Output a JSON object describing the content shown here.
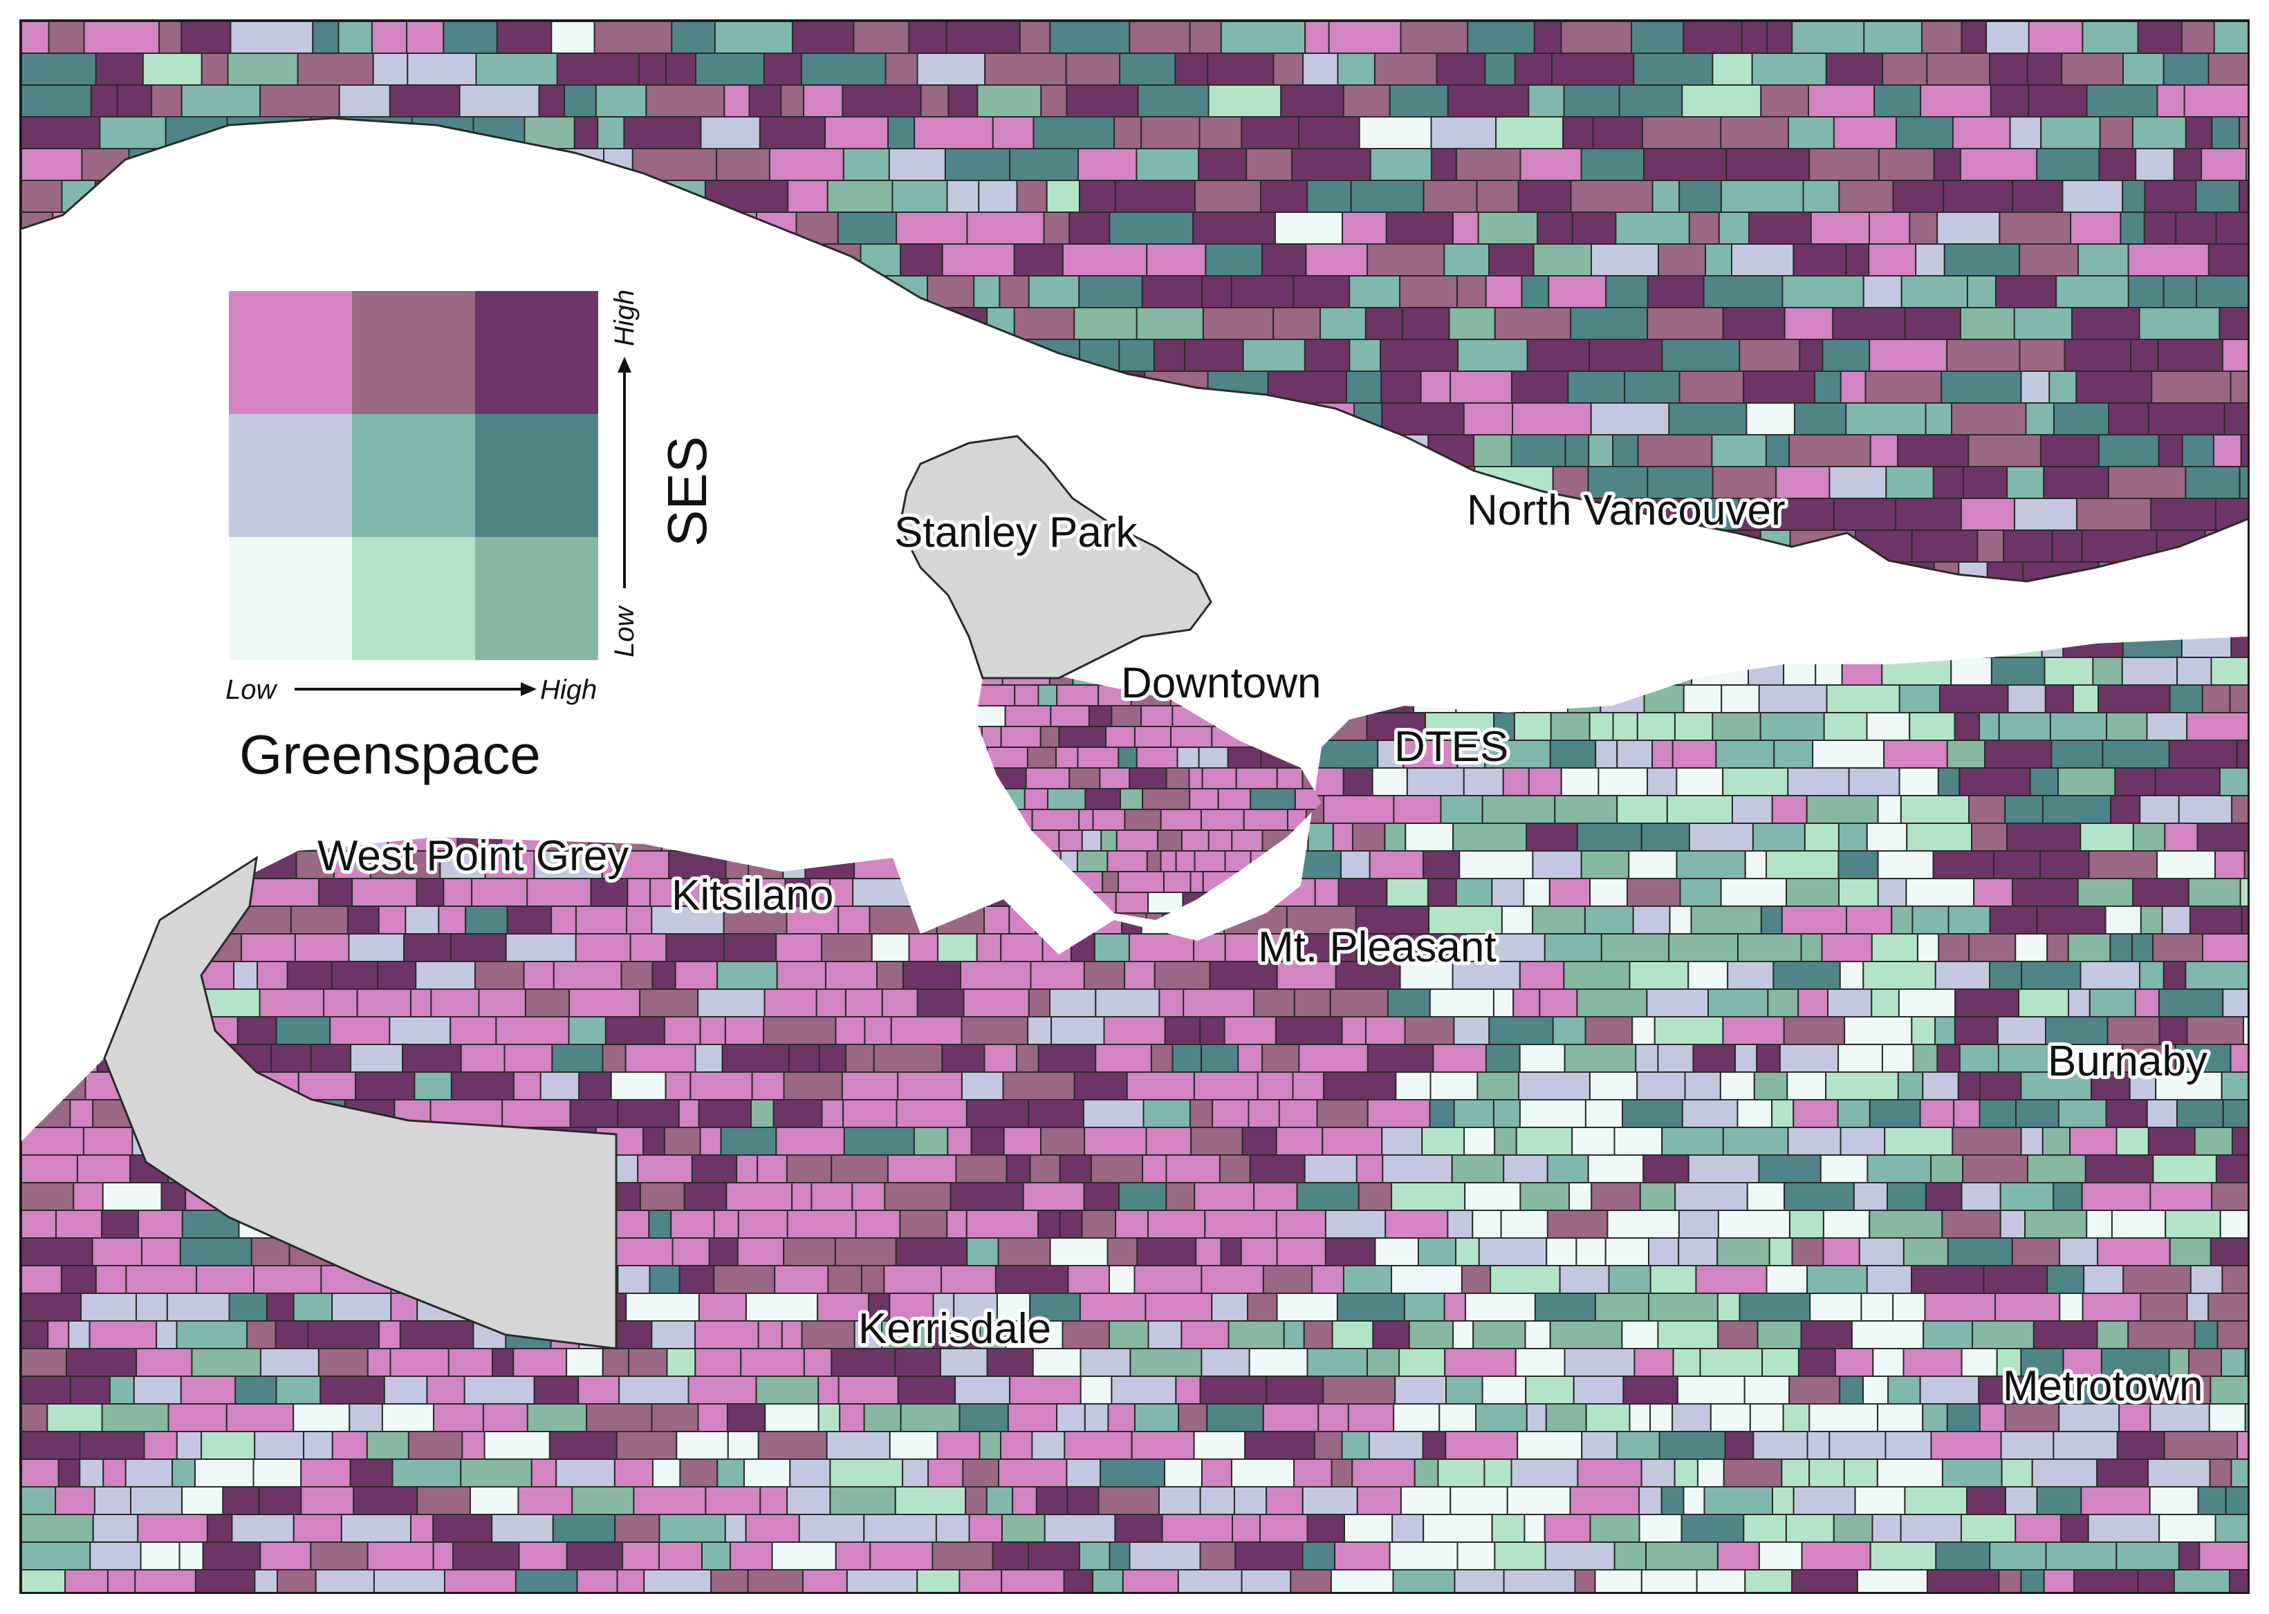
{
  "colors": {
    "water": "#ffffff",
    "park": "#d6d6d6",
    "border": "#2a2a2a",
    "bivariate": [
      [
        "#eef8f6",
        "#b4e4c8",
        "#86b8a2"
      ],
      [
        "#c3c8e0",
        "#80b8ae",
        "#4f8589"
      ],
      [
        "#d384c2",
        "#9a6784",
        "#6c3565"
      ]
    ]
  },
  "legend": {
    "x_title": "Greenspace",
    "y_title": "SES",
    "x_low": "Low",
    "x_high": "High",
    "y_low": "Low",
    "y_high": "High"
  },
  "labels": {
    "stanley_park": "Stanley Park",
    "north_vancouver": "North Vancouver",
    "downtown": "Downtown",
    "dtes": "DTES",
    "west_point_grey": "West Point Grey",
    "kitsilano": "Kitsilano",
    "mt_pleasant": "Mt. Pleasant",
    "burnaby": "Burnaby",
    "kerrisdale": "Kerrisdale",
    "metrotown": "Metrotown"
  }
}
